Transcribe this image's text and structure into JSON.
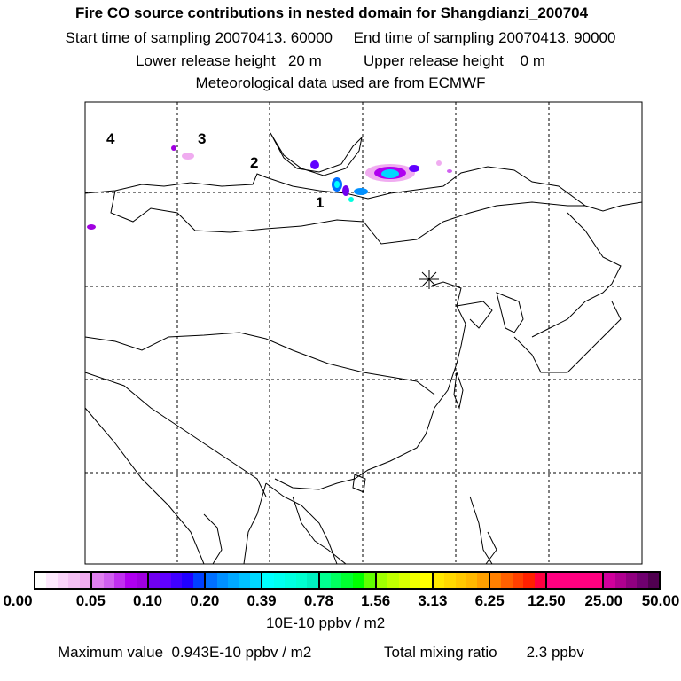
{
  "header": {
    "title": "Fire CO source contributions in nested domain for Shangdianzi_200704",
    "line1": "Start time of sampling 20070413. 60000     End time of sampling 20070413. 90000",
    "line2": "Lower release height   20 m          Upper release height    0 m",
    "line3": "Meteorological data used are from ECMWF"
  },
  "map": {
    "labels": [
      "1",
      "2",
      "3",
      "4"
    ]
  },
  "colorbar": {
    "ticks": [
      "0.00",
      "0.05",
      "0.10",
      "0.20",
      "0.39",
      "0.78",
      "1.56",
      "3.13",
      "6.25",
      "12.50",
      "25.00",
      "50.00"
    ],
    "colors": [
      "#ffffff",
      "#fde9fd",
      "#f9d3f9",
      "#f4c0f4",
      "#f0acf0",
      "#e080f0",
      "#d060f0",
      "#c030f0",
      "#b000f0",
      "#a000e0",
      "#7000f0",
      "#6000ff",
      "#4000ff",
      "#2000ff",
      "#0040ff",
      "#0070ff",
      "#0090ff",
      "#00a8ff",
      "#00c0ff",
      "#00d8ff",
      "#00ffff",
      "#00fff0",
      "#00ffe0",
      "#00ffd0",
      "#00f0c0",
      "#00ff90",
      "#00ff60",
      "#00ff30",
      "#00ff00",
      "#60ff00",
      "#a0ff00",
      "#c0ff00",
      "#d8ff00",
      "#f0ff00",
      "#ffff00",
      "#ffe800",
      "#ffd800",
      "#ffc800",
      "#ffb800",
      "#ffa000",
      "#ff8000",
      "#ff6000",
      "#ff4000",
      "#ff2000",
      "#ff0040",
      "#ff0080",
      "#ff0080",
      "#ff0080",
      "#ff0080",
      "#ff0080",
      "#d0009c",
      "#b00090",
      "#900080",
      "#700070",
      "#500050"
    ],
    "units": "10E-10 ppbv / m2"
  },
  "footer": {
    "max_label": "Maximum value  0.943E-10 ppbv / m2",
    "total_label": "Total mixing ratio       2.3 ppbv"
  }
}
